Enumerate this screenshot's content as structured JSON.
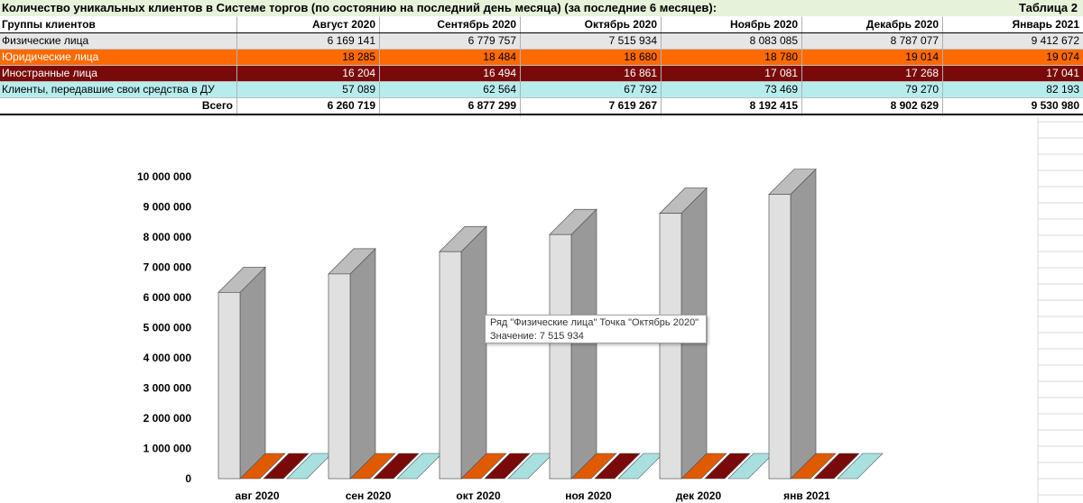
{
  "sheet": {
    "title": "Количество уникальных клиентов в Системе торгов (по состоянию на последний день месяца) (за последние 6 месяцев):",
    "table_label": "Таблица 2",
    "columns_header": "Группы клиентов",
    "months": [
      "Август 2020",
      "Сентябрь 2020",
      "Октябрь 2020",
      "Ноябрь 2020",
      "Декабрь 2020",
      "Январь 2021"
    ],
    "rows": [
      {
        "label": "Физические лица",
        "values": [
          "6 169 141",
          "6 779 757",
          "7 515 934",
          "8 083 085",
          "8 787 077",
          "9 412 672"
        ]
      },
      {
        "label": "Юридические лица",
        "values": [
          "18 285",
          "18 484",
          "18 680",
          "18 780",
          "19 014",
          "19 074"
        ]
      },
      {
        "label": "Иностранные лица",
        "values": [
          "16 204",
          "16 494",
          "16 861",
          "17 081",
          "17 268",
          "17 041"
        ]
      },
      {
        "label": "Клиенты, передавшие свои средства в ДУ",
        "values": [
          "57 089",
          "62 564",
          "67 792",
          "73 469",
          "79 270",
          "82 193"
        ]
      }
    ],
    "total": {
      "label": "Всего",
      "values": [
        "6 260 719",
        "6 877 299",
        "7 619 267",
        "8 192 415",
        "8 902 629",
        "9 530 980"
      ]
    }
  },
  "colors": {
    "physical": "#e0e0e0",
    "legal": "#e05a00",
    "foreign": "#7a0a0a",
    "du": "#a8e0e0",
    "title_bg": "#e6f2d9"
  },
  "chart_data": {
    "type": "bar",
    "title": "",
    "categories": [
      "авг 2020",
      "сен 2020",
      "окт 2020",
      "ноя 2020",
      "дек 2020",
      "янв 2021"
    ],
    "series": [
      {
        "name": "Физические лица",
        "values": [
          6169141,
          6779757,
          7515934,
          8083085,
          8787077,
          9412672
        ]
      },
      {
        "name": "Юридические лица",
        "values": [
          18285,
          18484,
          18680,
          18780,
          19014,
          19074
        ]
      },
      {
        "name": "Иностранные лица",
        "values": [
          16204,
          16494,
          16861,
          17081,
          17268,
          17041
        ]
      },
      {
        "name": "Клиенты, передавшие свои средства в ДУ",
        "values": [
          57089,
          62564,
          67792,
          73469,
          79270,
          82193
        ]
      }
    ],
    "yticks": [
      "0",
      "1 000 000",
      "2 000 000",
      "3 000 000",
      "4 000 000",
      "5 000 000",
      "6 000 000",
      "7 000 000",
      "8 000 000",
      "9 000 000",
      "10 000 000"
    ],
    "ylim": [
      0,
      10000000
    ],
    "xlabel": "",
    "ylabel": "",
    "grid": false
  },
  "tooltip": {
    "line1": "Ряд \"Физические лица\" Точка \"Октябрь 2020\"",
    "line2": "Значение: 7 515 934"
  }
}
